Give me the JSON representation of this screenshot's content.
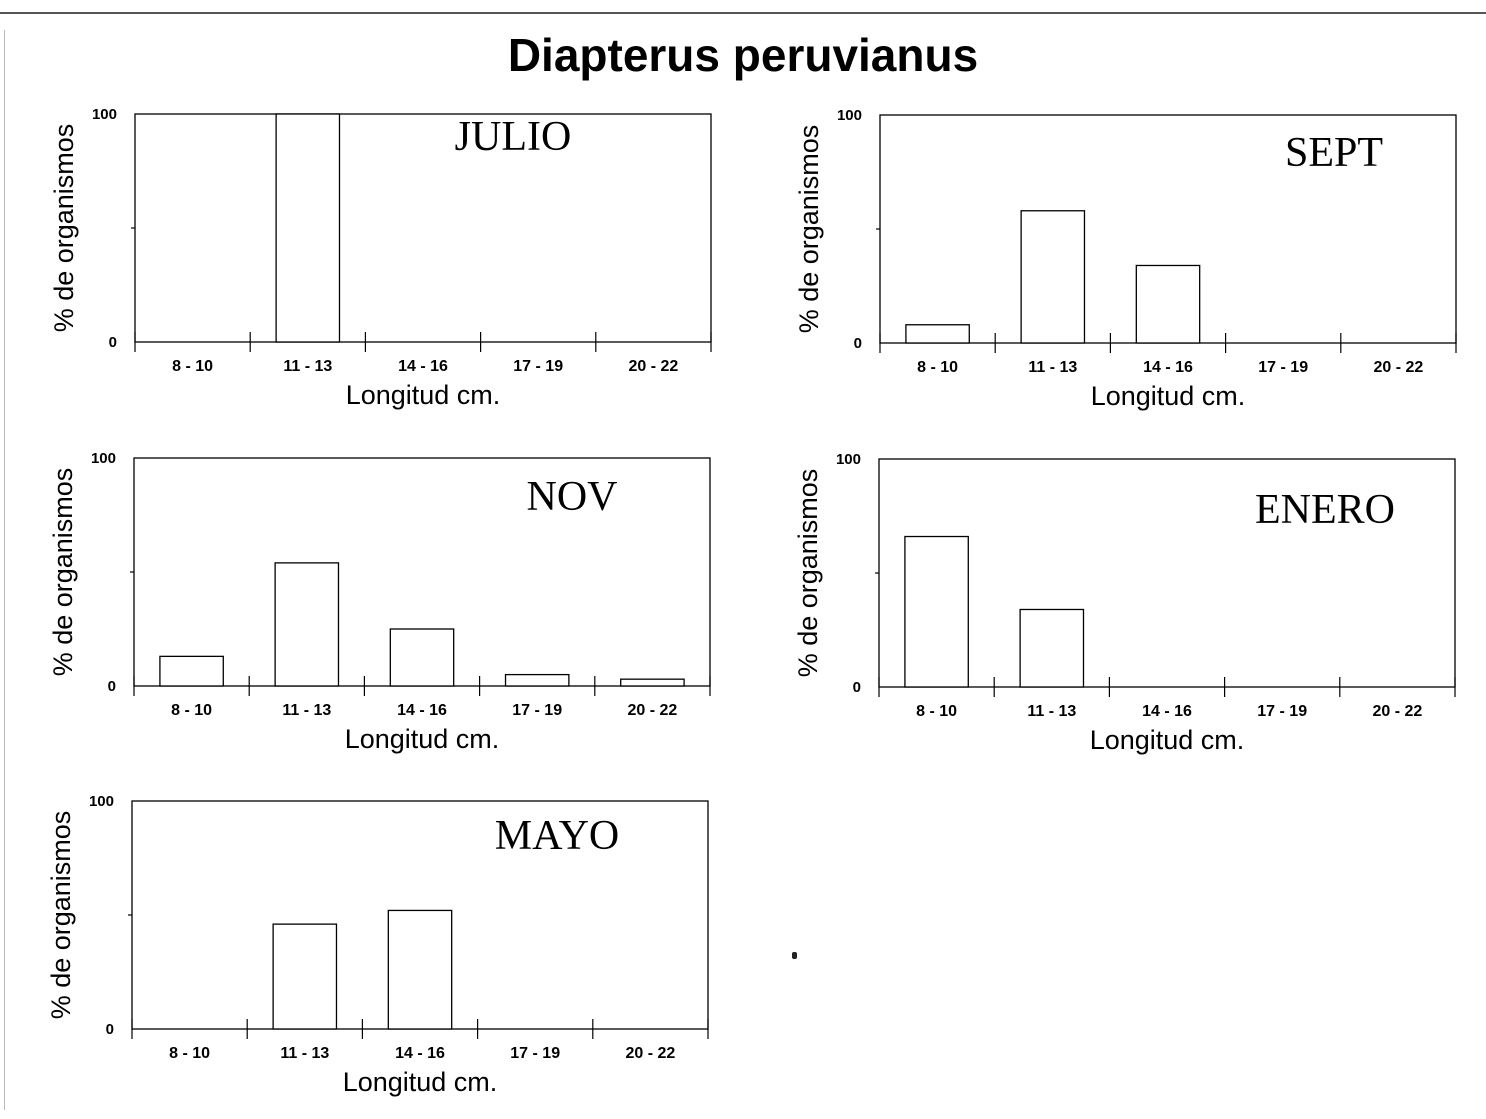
{
  "title": "Diapterus peruvianus",
  "chart_data": [
    {
      "type": "bar",
      "label": "JULIO",
      "categories": [
        "8 - 10",
        "11 - 13",
        "14 - 16",
        "17 - 19",
        "20 - 22"
      ],
      "values": [
        0,
        100,
        0,
        0,
        0
      ],
      "xlabel": "Longitud cm.",
      "ylabel": "% de organismos",
      "ylim": [
        0,
        100
      ],
      "yticks": [
        "0",
        "100"
      ]
    },
    {
      "type": "bar",
      "label": "SEPT",
      "categories": [
        "8 - 10",
        "11 - 13",
        "14 - 16",
        "17 - 19",
        "20 - 22"
      ],
      "values": [
        8,
        58,
        34,
        0,
        0
      ],
      "xlabel": "Longitud cm.",
      "ylabel": "% de organismos",
      "ylim": [
        0,
        100
      ],
      "yticks": [
        "0",
        "100"
      ]
    },
    {
      "type": "bar",
      "label": "NOV",
      "categories": [
        "8 - 10",
        "11 - 13",
        "14 - 16",
        "17 - 19",
        "20 - 22"
      ],
      "values": [
        13,
        54,
        25,
        5,
        3
      ],
      "xlabel": "Longitud cm.",
      "ylabel": "% de organismos",
      "ylim": [
        0,
        100
      ],
      "yticks": [
        "0",
        "100"
      ]
    },
    {
      "type": "bar",
      "label": "ENERO",
      "categories": [
        "8 - 10",
        "11 - 13",
        "14 - 16",
        "17 - 19",
        "20 - 22"
      ],
      "values": [
        66,
        34,
        0,
        0,
        0
      ],
      "xlabel": "Longitud cm.",
      "ylabel": "% de organismos",
      "ylim": [
        0,
        100
      ],
      "yticks": [
        "0",
        "100"
      ]
    },
    {
      "type": "bar",
      "label": "MAYO",
      "categories": [
        "8 - 10",
        "11 - 13",
        "14 - 16",
        "17 - 19",
        "20 - 22"
      ],
      "values": [
        0,
        46,
        52,
        0,
        0
      ],
      "xlabel": "Longitud cm.",
      "ylabel": "% de organismos",
      "ylim": [
        0,
        100
      ],
      "yticks": [
        "0",
        "100"
      ]
    }
  ]
}
